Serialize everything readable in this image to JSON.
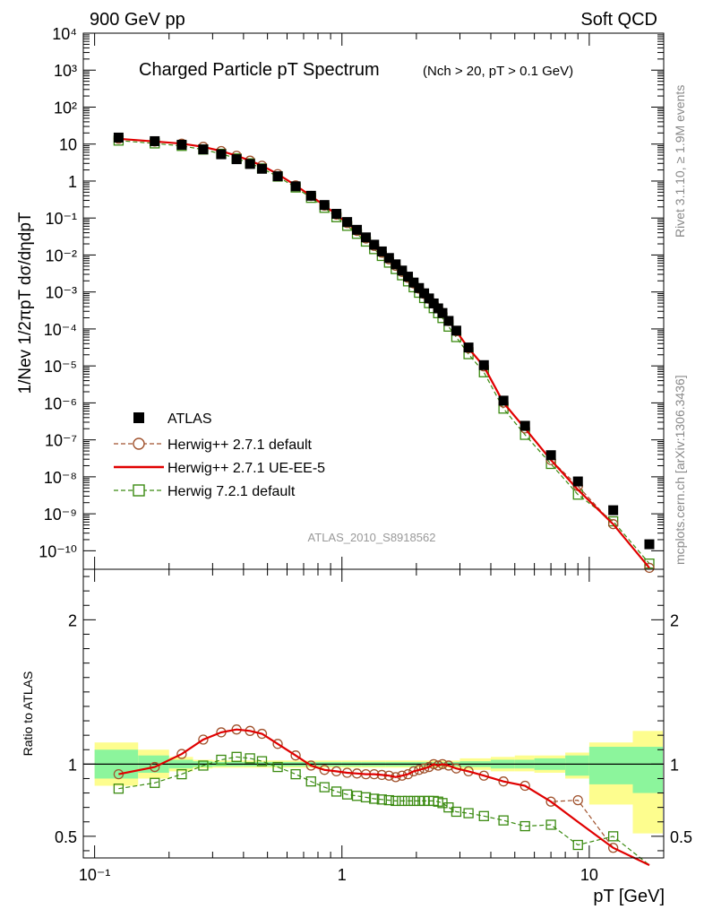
{
  "header": {
    "left": "900 GeV pp",
    "right": "Soft QCD",
    "right_side_top": "Rivet 3.1.10, ≥ 1.9M events",
    "right_side_bottom": "mcplots.cern.ch [arXiv:1306.3436]"
  },
  "chart_data": {
    "type": "scatter",
    "title": "Charged Particle pT Spectrum",
    "title_sub": "(Nch > 20, pT > 0.1 GeV)",
    "analysis": "ATLAS_2010_S8918562",
    "ylabel": "1/Nev 1/2πpT dσ/dηdpT",
    "ratio_ylabel": "Ratio to ATLAS",
    "xlabel": "pT [GeV]",
    "xscale": "log",
    "xlim": [
      0.09,
      20
    ],
    "ylim": [
      3.16e-11,
      10000
    ],
    "ratio_ylim": [
      0.35,
      2.35
    ],
    "x_ticks": [
      "10⁻¹",
      "1",
      "10"
    ],
    "y_ticks": [
      "10⁻¹⁰",
      "10⁻⁹",
      "10⁻⁸",
      "10⁻⁷",
      "10⁻⁶",
      "10⁻⁵",
      "10⁻⁴",
      "10⁻³",
      "10⁻²",
      "10⁻¹",
      "1",
      "10",
      "10²",
      "10³",
      "10⁴"
    ],
    "ratio_y_ticks": [
      "0.5",
      "1",
      "2"
    ],
    "legend_position": "lower-left",
    "x": [
      0.125,
      0.175,
      0.225,
      0.275,
      0.325,
      0.375,
      0.425,
      0.475,
      0.55,
      0.65,
      0.75,
      0.85,
      0.95,
      1.05,
      1.15,
      1.25,
      1.35,
      1.45,
      1.55,
      1.65,
      1.75,
      1.85,
      1.95,
      2.05,
      2.15,
      2.25,
      2.35,
      2.45,
      2.55,
      2.7,
      2.9,
      3.25,
      3.75,
      4.5,
      5.5,
      7.0,
      9.0,
      12.5,
      17.5
    ],
    "series": [
      {
        "name": "ATLAS",
        "color": "#000000",
        "marker": "filled-square",
        "values": [
          15.0,
          12.0,
          9.6,
          7.2,
          5.3,
          3.9,
          2.9,
          2.15,
          1.35,
          0.72,
          0.4,
          0.225,
          0.13,
          0.078,
          0.048,
          0.03,
          0.019,
          0.0125,
          0.0083,
          0.0056,
          0.0038,
          0.0026,
          0.0018,
          0.00128,
          0.00092,
          0.00067,
          0.00049,
          0.00036,
          0.00027,
          0.000165,
          9e-05,
          3.15e-05,
          1.05e-05,
          1.15e-06,
          2.4e-07,
          3.85e-08,
          7.5e-09,
          1.25e-09,
          1.5e-10
        ]
      },
      {
        "name": "Herwig++ 2.7.1 default",
        "color": "#a0522d",
        "marker": "open-circle",
        "ratio": [
          0.93,
          0.98,
          1.07,
          1.17,
          1.22,
          1.24,
          1.23,
          1.21,
          1.14,
          1.06,
          0.99,
          0.96,
          0.95,
          0.94,
          0.935,
          0.93,
          0.93,
          0.925,
          0.92,
          0.91,
          0.92,
          0.93,
          0.95,
          0.96,
          0.97,
          0.98,
          1.0,
          0.99,
          1.0,
          0.99,
          0.97,
          0.95,
          0.92,
          0.88,
          0.85,
          0.74,
          0.75,
          0.42,
          0.23
        ]
      },
      {
        "name": "Herwig++ 2.7.1 UE-EE-5",
        "color": "#e00000",
        "marker": "line",
        "ratio": [
          0.93,
          0.98,
          1.07,
          1.17,
          1.22,
          1.24,
          1.23,
          1.21,
          1.14,
          1.06,
          0.99,
          0.96,
          0.95,
          0.94,
          0.935,
          0.93,
          0.93,
          0.925,
          0.92,
          0.91,
          0.92,
          0.93,
          0.95,
          0.96,
          0.97,
          0.98,
          1.0,
          0.99,
          1.0,
          0.99,
          0.97,
          0.95,
          0.92,
          0.88,
          0.85,
          0.74,
          0.6,
          0.42,
          0.23
        ]
      },
      {
        "name": "Herwig 7.2.1 default",
        "color": "#3a8a10",
        "marker": "open-square",
        "ratio": [
          0.83,
          0.87,
          0.93,
          0.99,
          1.03,
          1.05,
          1.04,
          1.02,
          0.98,
          0.93,
          0.88,
          0.84,
          0.81,
          0.79,
          0.78,
          0.77,
          0.76,
          0.755,
          0.75,
          0.745,
          0.745,
          0.745,
          0.745,
          0.745,
          0.745,
          0.745,
          0.745,
          0.74,
          0.73,
          0.7,
          0.67,
          0.66,
          0.64,
          0.61,
          0.57,
          0.58,
          0.44,
          0.5,
          0.3
        ]
      }
    ],
    "ratio_band_x": [
      0.1,
      0.15,
      0.2,
      0.25,
      0.3,
      0.4,
      0.5,
      0.6,
      0.7,
      0.8,
      1.0,
      1.2,
      1.5,
      2.0,
      3.0,
      4.0,
      5.0,
      6.0,
      8.0,
      10.0,
      15.0,
      20.0
    ],
    "ratio_band_green": [
      [
        0.9,
        1.1
      ],
      [
        0.94,
        1.06
      ],
      [
        0.97,
        1.03
      ],
      [
        0.98,
        1.02
      ],
      [
        0.985,
        1.015
      ],
      [
        0.985,
        1.015
      ],
      [
        0.985,
        1.015
      ],
      [
        0.985,
        1.015
      ],
      [
        0.985,
        1.015
      ],
      [
        0.985,
        1.015
      ],
      [
        0.985,
        1.015
      ],
      [
        0.985,
        1.015
      ],
      [
        0.985,
        1.015
      ],
      [
        0.985,
        1.015
      ],
      [
        0.98,
        1.02
      ],
      [
        0.97,
        1.03
      ],
      [
        0.97,
        1.03
      ],
      [
        0.96,
        1.04
      ],
      [
        0.92,
        1.06
      ],
      [
        0.86,
        1.12
      ],
      [
        0.8,
        1.12
      ]
    ],
    "ratio_band_yellow": [
      [
        0.85,
        1.15
      ],
      [
        0.9,
        1.1
      ],
      [
        0.95,
        1.05
      ],
      [
        0.97,
        1.03
      ],
      [
        0.975,
        1.025
      ],
      [
        0.975,
        1.025
      ],
      [
        0.975,
        1.025
      ],
      [
        0.975,
        1.025
      ],
      [
        0.975,
        1.025
      ],
      [
        0.975,
        1.025
      ],
      [
        0.975,
        1.025
      ],
      [
        0.975,
        1.025
      ],
      [
        0.975,
        1.025
      ],
      [
        0.975,
        1.025
      ],
      [
        0.96,
        1.04
      ],
      [
        0.95,
        1.05
      ],
      [
        0.95,
        1.06
      ],
      [
        0.94,
        1.06
      ],
      [
        0.9,
        1.08
      ],
      [
        0.72,
        1.15
      ],
      [
        0.52,
        1.23
      ]
    ]
  }
}
